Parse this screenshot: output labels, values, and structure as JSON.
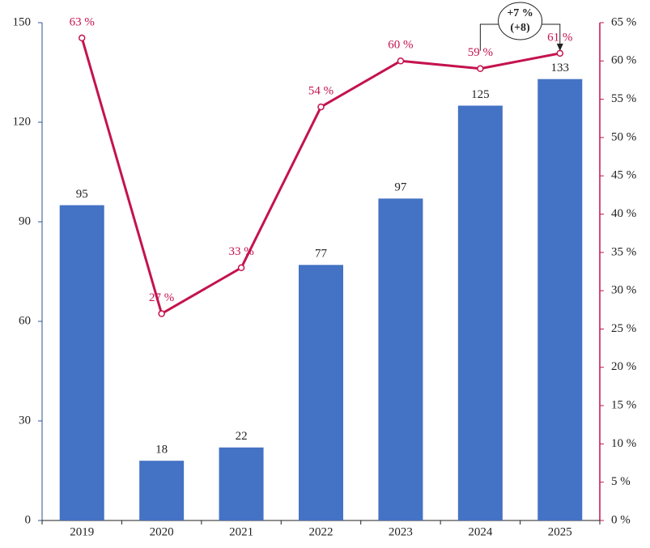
{
  "chart_data": {
    "type": "bar",
    "categories": [
      "2019",
      "2020",
      "2021",
      "2022",
      "2023",
      "2024",
      "2025"
    ],
    "series": [
      {
        "type": "bar",
        "color": "#4472c4",
        "values": [
          95,
          18,
          22,
          77,
          97,
          125,
          133
        ]
      },
      {
        "type": "line",
        "axis": "y2",
        "color": "#c4134d",
        "values": [
          63,
          27,
          33,
          54,
          60,
          59,
          61
        ],
        "value_labels": [
          "63 %",
          "27 %",
          "33 %",
          "54 %",
          "60 %",
          "59 %",
          "61 %"
        ]
      }
    ],
    "ylim": [
      0,
      150
    ],
    "yticks": [
      0,
      30,
      60,
      90,
      120,
      150
    ],
    "y2lim": [
      0,
      65
    ],
    "y2ticks": [
      {
        "value": 0,
        "label": "0 %"
      },
      {
        "value": 5,
        "label": "5 %"
      },
      {
        "value": 10,
        "label": "10 %"
      },
      {
        "value": 15,
        "label": "15 %"
      },
      {
        "value": 20,
        "label": "20 %"
      },
      {
        "value": 25,
        "label": "25 %"
      },
      {
        "value": 30,
        "label": "30 %"
      },
      {
        "value": 35,
        "label": "35 %"
      },
      {
        "value": 40,
        "label": "40 %"
      },
      {
        "value": 45,
        "label": "45 %"
      },
      {
        "value": 50,
        "label": "50 %"
      },
      {
        "value": 55,
        "label": "55 %"
      },
      {
        "value": 60,
        "label": "60 %"
      },
      {
        "value": 65,
        "label": "65 %"
      }
    ],
    "annotation": {
      "lines": [
        "+7 %",
        "(+8)"
      ],
      "from": "2024",
      "to": "2025"
    }
  }
}
